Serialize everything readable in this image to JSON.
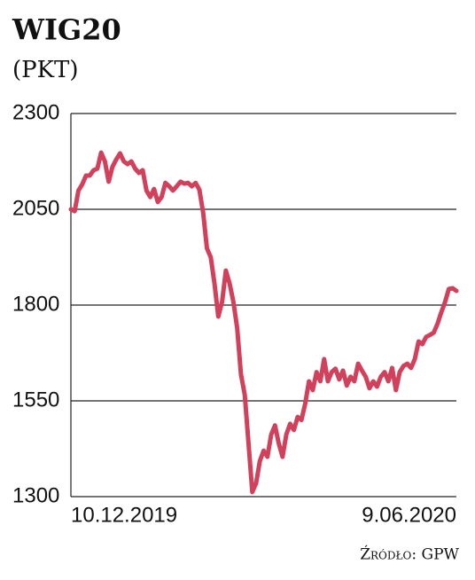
{
  "chart_data": {
    "type": "line",
    "title": "WIG20",
    "subtitle": "(PKT)",
    "source": "Źródło: GPW",
    "color": "#d2415c",
    "grid": true,
    "ylim": [
      1300,
      2300
    ],
    "yticks": [
      1300,
      1550,
      1800,
      2050,
      2300
    ],
    "categories": [
      "10.12.2019",
      null,
      null,
      null,
      null,
      null,
      null,
      null,
      null,
      null,
      null,
      null,
      null,
      null,
      null,
      null,
      null,
      null,
      null,
      null,
      null,
      null,
      null,
      null,
      null,
      null,
      null,
      null,
      null,
      null,
      null,
      null,
      null,
      null,
      null,
      null,
      null,
      null,
      null,
      null,
      null,
      null,
      null,
      null,
      null,
      null,
      null,
      null,
      null,
      null,
      null,
      null,
      null,
      null,
      null,
      null,
      null,
      null,
      null,
      null,
      null,
      null,
      null,
      null,
      null,
      null,
      null,
      null,
      null,
      null,
      null,
      null,
      null,
      null,
      null,
      null,
      null,
      null,
      null,
      null,
      null,
      null,
      null,
      null,
      null,
      null,
      null,
      null,
      null,
      null,
      null,
      null,
      null,
      null,
      null,
      null,
      null,
      null,
      null,
      null,
      null,
      null,
      "9.06.2020"
    ],
    "values": [
      2050,
      2045,
      2099,
      2115,
      2138,
      2138,
      2152,
      2156,
      2198,
      2175,
      2122,
      2161,
      2180,
      2196,
      2175,
      2168,
      2175,
      2156,
      2145,
      2152,
      2099,
      2082,
      2103,
      2069,
      2082,
      2119,
      2110,
      2099,
      2110,
      2122,
      2117,
      2119,
      2110,
      2119,
      2101,
      2041,
      1948,
      1925,
      1856,
      1770,
      1808,
      1890,
      1856,
      1808,
      1740,
      1619,
      1566,
      1439,
      1312,
      1335,
      1393,
      1420,
      1404,
      1462,
      1486,
      1439,
      1404,
      1462,
      1490,
      1474,
      1508,
      1500,
      1543,
      1601,
      1578,
      1625,
      1601,
      1659,
      1601,
      1625,
      1634,
      1606,
      1629,
      1590,
      1613,
      1601,
      1647,
      1629,
      1613,
      1583,
      1601,
      1587,
      1613,
      1625,
      1601,
      1636,
      1578,
      1625,
      1641,
      1647,
      1636,
      1659,
      1705,
      1698,
      1717,
      1722,
      1728,
      1751,
      1781,
      1808,
      1842,
      1844,
      1837
    ]
  }
}
